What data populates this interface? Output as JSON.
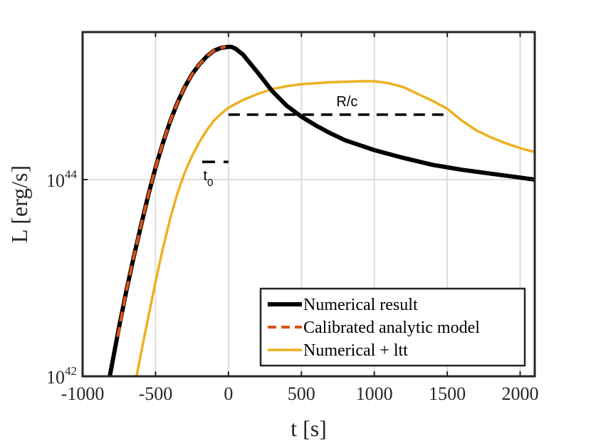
{
  "chart_data": {
    "type": "line",
    "title": "",
    "xlabel": "t [s]",
    "ylabel": "L [erg/s]",
    "xscale": "linear",
    "yscale": "log",
    "xlim": [
      -1000,
      2100
    ],
    "ylim_exp": [
      42,
      45.5
    ],
    "xticks": [
      {
        "value": -1000,
        "label": "-1000"
      },
      {
        "value": -500,
        "label": "-500"
      },
      {
        "value": 0,
        "label": "0"
      },
      {
        "value": 500,
        "label": "500"
      },
      {
        "value": 1000,
        "label": "1000"
      },
      {
        "value": 1500,
        "label": "1500"
      },
      {
        "value": 2000,
        "label": "2000"
      }
    ],
    "yticks": [
      {
        "exp": 42,
        "base": "10",
        "sup": "42"
      },
      {
        "exp": 44,
        "base": "10",
        "sup": "44"
      }
    ],
    "grid": true,
    "legend_position": "bottom-right",
    "series": [
      {
        "name": "Numerical result",
        "color": "#000000",
        "style": "solid",
        "x": [
          -820,
          -800,
          -750,
          -700,
          -650,
          -600,
          -550,
          -500,
          -450,
          -400,
          -350,
          -300,
          -250,
          -200,
          -150,
          -100,
          -50,
          0,
          20,
          50,
          100,
          200,
          300,
          400,
          500,
          600,
          700,
          800,
          900,
          1000,
          1200,
          1400,
          1600,
          1800,
          2000,
          2100
        ],
        "y_exp": [
          41.95,
          42.11,
          42.5,
          42.87,
          43.21,
          43.53,
          43.84,
          44.12,
          44.37,
          44.59,
          44.78,
          44.94,
          45.07,
          45.17,
          45.25,
          45.31,
          45.34,
          45.35,
          45.35,
          45.33,
          45.27,
          45.09,
          44.9,
          44.75,
          44.64,
          44.55,
          44.47,
          44.4,
          44.35,
          44.3,
          44.22,
          44.15,
          44.1,
          44.06,
          44.02,
          44.0
        ]
      },
      {
        "name": "Calibrated analytic model",
        "color": "#D95319",
        "style": "dashed",
        "x": [
          -760,
          -700,
          -650,
          -600,
          -550,
          -500,
          -450,
          -400,
          -350,
          -300,
          -250,
          -200,
          -150,
          -100,
          -50,
          -20
        ],
        "y_exp": [
          42.4,
          42.87,
          43.21,
          43.53,
          43.84,
          44.12,
          44.37,
          44.59,
          44.78,
          44.94,
          45.07,
          45.17,
          45.25,
          45.31,
          45.34,
          45.35
        ]
      },
      {
        "name": "Numerical + ltt",
        "color": "#EDB120",
        "style": "solid",
        "x": [
          -630,
          -600,
          -550,
          -500,
          -450,
          -400,
          -350,
          -300,
          -250,
          -200,
          -150,
          -100,
          -50,
          0,
          100,
          200,
          300,
          400,
          500,
          600,
          700,
          800,
          900,
          1000,
          1100,
          1200,
          1300,
          1400,
          1500,
          1600,
          1700,
          1800,
          1900,
          2000,
          2100
        ],
        "y_exp": [
          42.0,
          42.23,
          42.6,
          42.96,
          43.3,
          43.6,
          43.86,
          44.07,
          44.24,
          44.38,
          44.5,
          44.6,
          44.67,
          44.73,
          44.81,
          44.87,
          44.92,
          44.95,
          44.97,
          44.98,
          44.99,
          44.995,
          45.0,
          45.0,
          44.98,
          44.94,
          44.87,
          44.8,
          44.72,
          44.6,
          44.5,
          44.43,
          44.37,
          44.32,
          44.28
        ]
      }
    ],
    "annotations": [
      {
        "name": "R/c",
        "text": "R/c",
        "x": [
          0,
          1480
        ],
        "y_exp": 44.66,
        "style": "dashed"
      },
      {
        "name": "t0",
        "text": "t",
        "subscript": "0",
        "x": [
          -180,
          0
        ],
        "y_exp": 44.18,
        "style": "dashed"
      }
    ]
  }
}
